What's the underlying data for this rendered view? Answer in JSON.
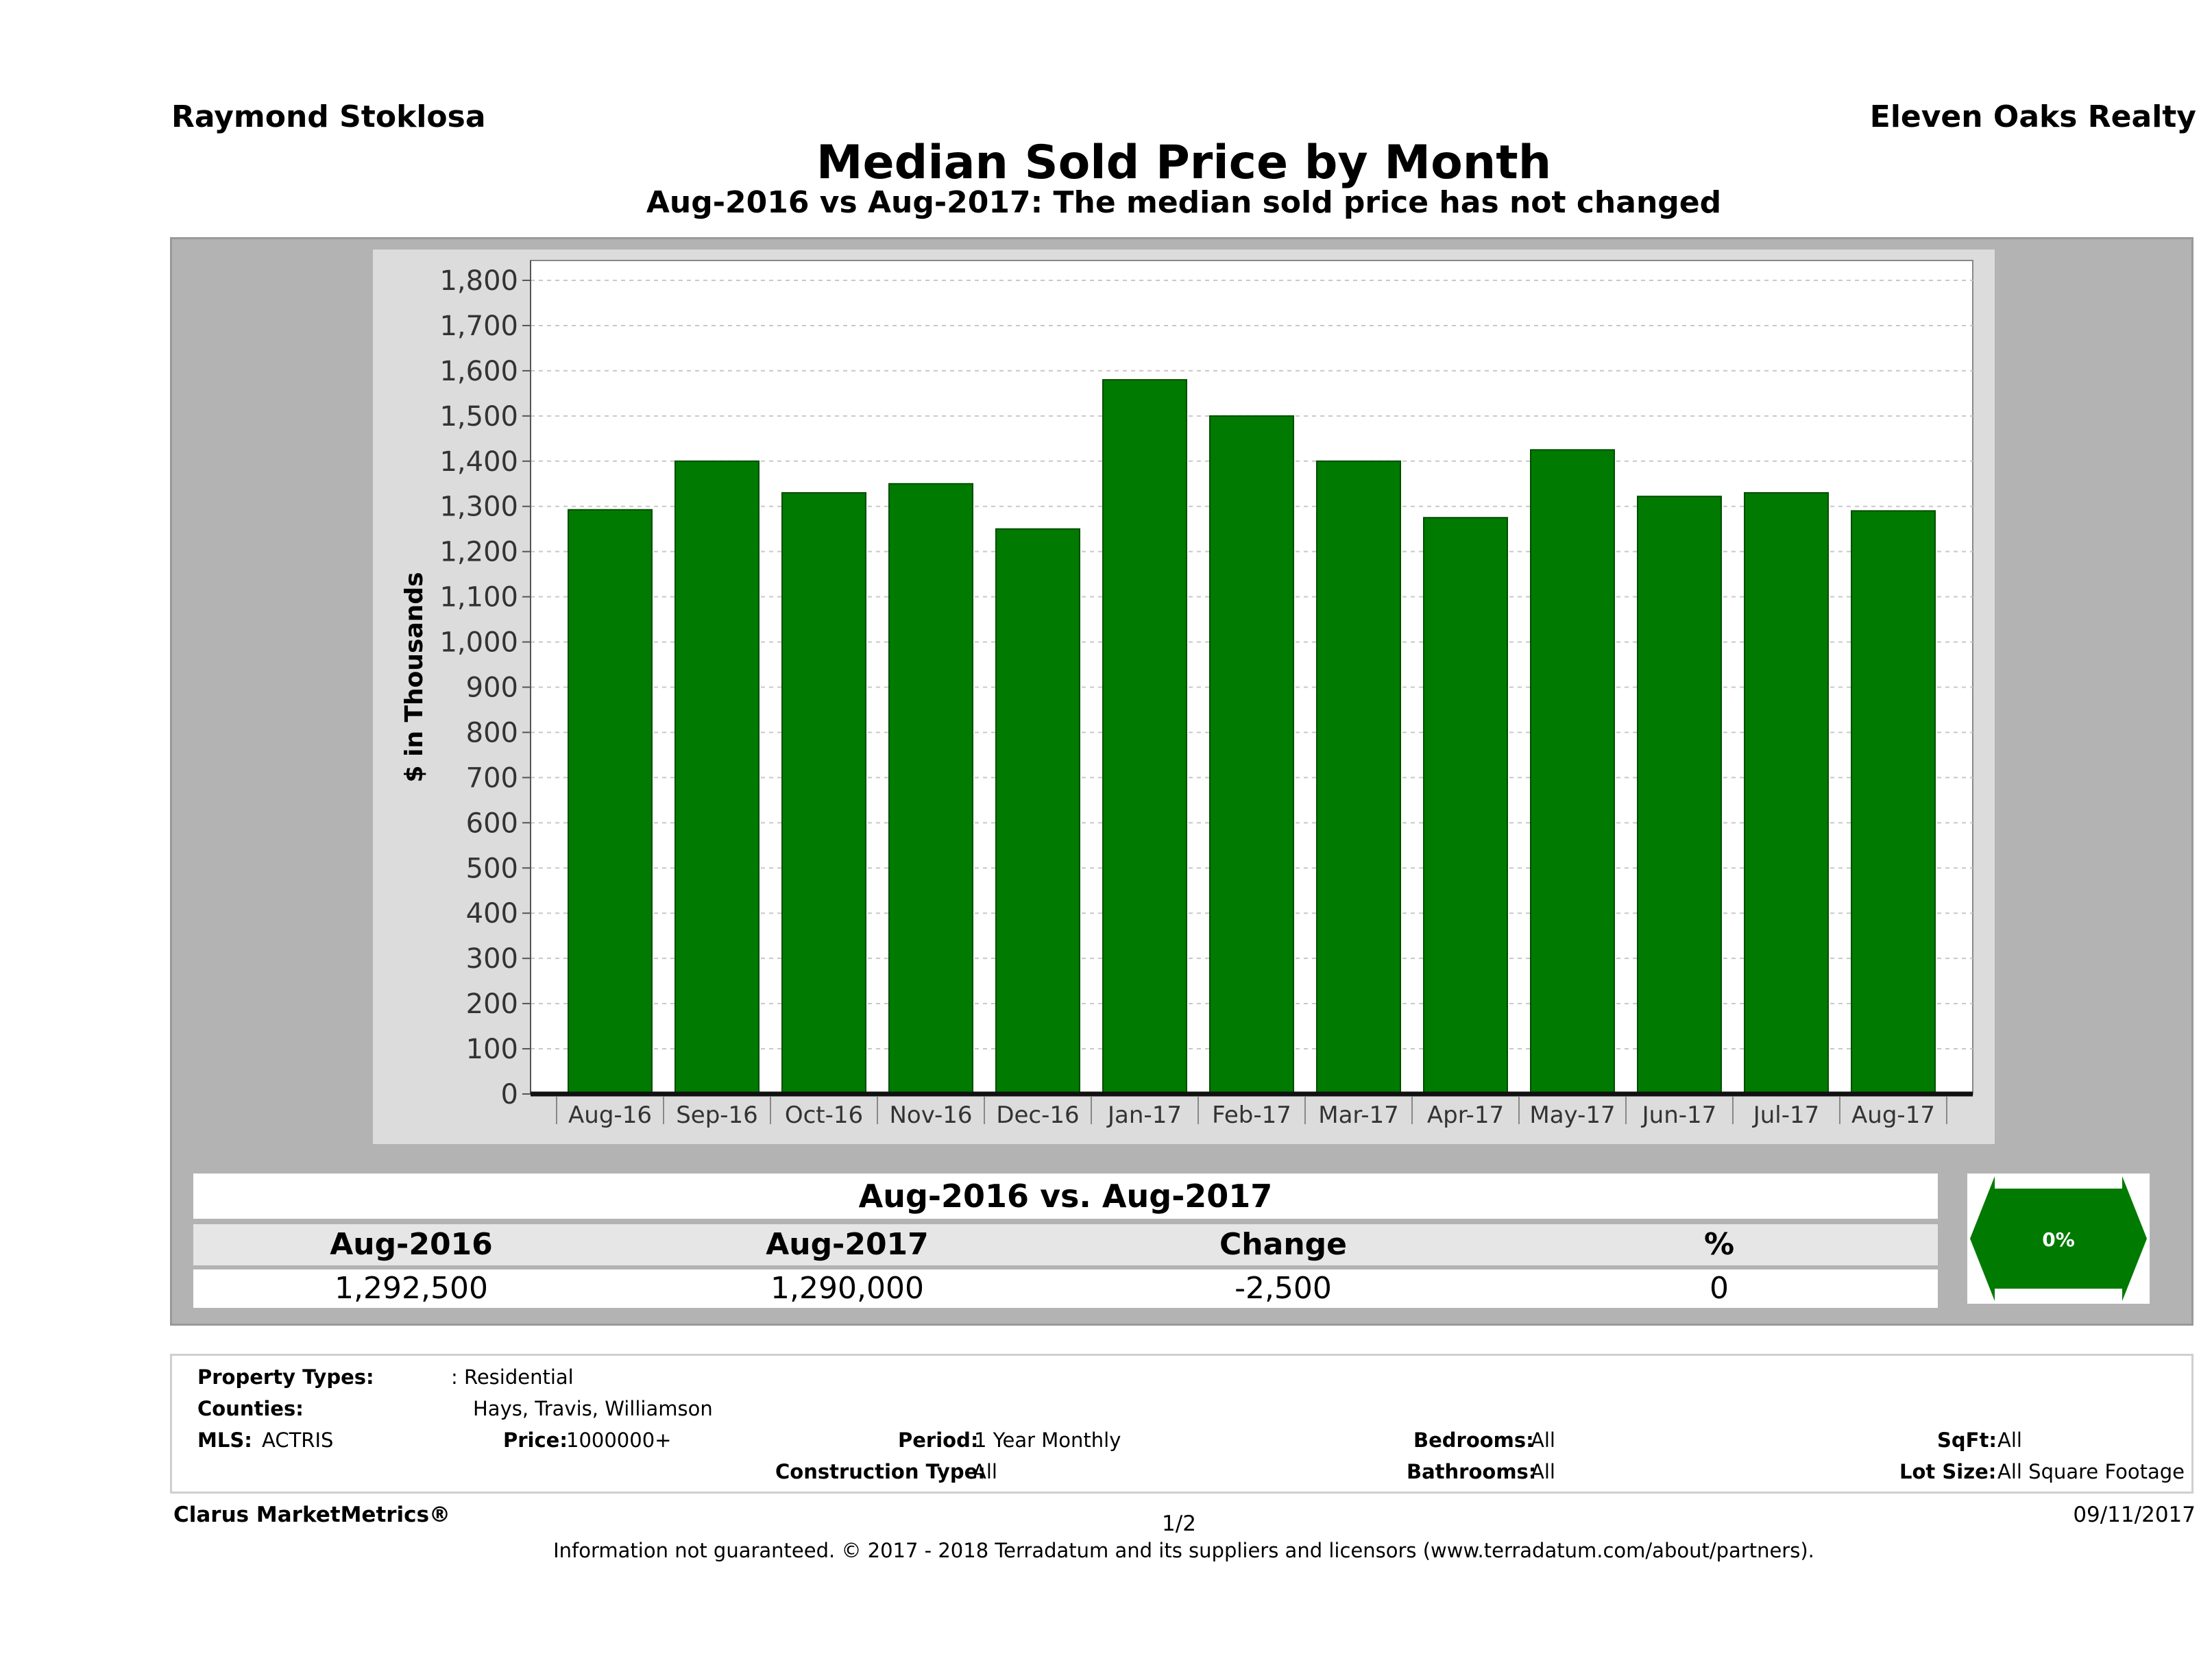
{
  "header": {
    "agent": "Raymond Stoklosa",
    "brokerage": "Eleven Oaks Realty",
    "title": "Median Sold Price by Month",
    "subtitle": "Aug-2016 vs Aug-2017: The median sold price has not changed"
  },
  "chart_data": {
    "type": "bar",
    "title": "Median Sold Price by Month",
    "ylabel": "$ in Thousands",
    "xlabel": "",
    "ylim": [
      0,
      1800
    ],
    "yticks": [
      0,
      100,
      200,
      300,
      400,
      500,
      600,
      700,
      800,
      900,
      1000,
      1100,
      1200,
      1300,
      1400,
      1500,
      1600,
      1700,
      1800
    ],
    "ytick_labels": [
      "0",
      "100",
      "200",
      "300",
      "400",
      "500",
      "600",
      "700",
      "800",
      "900",
      "1,000",
      "1,100",
      "1,200",
      "1,300",
      "1,400",
      "1,500",
      "1,600",
      "1,700",
      "1,800"
    ],
    "categories": [
      "Aug-16",
      "Sep-16",
      "Oct-16",
      "Nov-16",
      "Dec-16",
      "Jan-17",
      "Feb-17",
      "Mar-17",
      "Apr-17",
      "May-17",
      "Jun-17",
      "Jul-17",
      "Aug-17"
    ],
    "values": [
      1292.5,
      1400,
      1330,
      1350,
      1250,
      1580,
      1500,
      1400,
      1275,
      1425,
      1322,
      1330,
      1290
    ],
    "bar_color": "#007a00",
    "grid": true
  },
  "summary": {
    "title": "Aug-2016 vs. Aug-2017",
    "headers": [
      "Aug-2016",
      "Aug-2017",
      "Change",
      "%"
    ],
    "values": [
      "1,292,500",
      "1,290,000",
      "-2,500",
      "0"
    ],
    "badge": "0%",
    "badge_color": "#007a00"
  },
  "criteria": {
    "property_types_label": "Property Types:",
    "property_types_value": ": Residential",
    "counties_label": "Counties:",
    "counties_value": "Hays, Travis, Williamson",
    "mls_label": "MLS:",
    "mls_value": "ACTRIS",
    "price_label": "Price:",
    "price_value": "1000000+",
    "period_label": "Period:",
    "period_value": "1 Year Monthly",
    "construction_label": "Construction Type:",
    "construction_value": "All",
    "bedrooms_label": "Bedrooms:",
    "bedrooms_value": "All",
    "bathrooms_label": "Bathrooms:",
    "bathrooms_value": "All",
    "sqft_label": "SqFt:",
    "sqft_value": "All",
    "lotsize_label": "Lot Size:",
    "lotsize_value": "All Square Footage"
  },
  "footer": {
    "brand": "Clarus MarketMetrics®",
    "page": "1/2",
    "date": "09/11/2017",
    "disclaimer": "Information not guaranteed. © 2017 - 2018 Terradatum and its suppliers and licensors (www.terradatum.com/about/partners)."
  }
}
